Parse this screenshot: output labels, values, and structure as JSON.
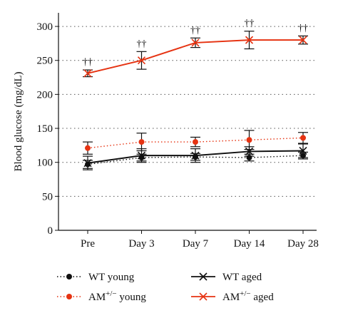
{
  "chart_data": {
    "type": "line",
    "categories": [
      "Pre",
      "Day 3",
      "Day 7",
      "Day 14",
      "Day 28"
    ],
    "ylabel": "Blood glucose (mg/dL)",
    "ylim": [
      0,
      320
    ],
    "yticks": [
      0,
      50,
      100,
      150,
      200,
      250,
      300
    ],
    "grid": "horizontal dotted",
    "legend_position": "bottom",
    "series": [
      {
        "name": "WT young",
        "color": "#111111",
        "line_style": "dotted",
        "marker": "circle",
        "values": [
          97,
          107,
          108,
          107,
          110
        ],
        "error": [
          6,
          5,
          5,
          5,
          5
        ]
      },
      {
        "name": "WT aged",
        "color": "#111111",
        "line_style": "solid",
        "marker": "x",
        "values": [
          99,
          110,
          110,
          116,
          117
        ],
        "error": [
          10,
          10,
          10,
          7,
          10
        ]
      },
      {
        "name": "AM+/− young",
        "color": "#e63312",
        "line_style": "dotted",
        "marker": "circle",
        "values": [
          121,
          130,
          130,
          133,
          136
        ],
        "error": [
          9,
          13,
          7,
          14,
          8
        ]
      },
      {
        "name": "AM+/− aged",
        "color": "#e63312",
        "line_style": "solid",
        "marker": "x",
        "values": [
          231,
          250,
          276,
          280,
          280
        ],
        "error": [
          5,
          13,
          7,
          13,
          6
        ]
      }
    ],
    "annotations": [
      {
        "category": "Pre",
        "text": "††"
      },
      {
        "category": "Day 3",
        "text": "††"
      },
      {
        "category": "Day 7",
        "text": "††"
      },
      {
        "category": "Day 14",
        "text": "††"
      },
      {
        "category": "Day 28",
        "text": "††"
      }
    ],
    "legend": [
      {
        "base": "WT young",
        "sup": ""
      },
      {
        "base": "WT aged",
        "sup": ""
      },
      {
        "base": "AM",
        "sup": "+/−",
        "suffix": " young"
      },
      {
        "base": "AM",
        "sup": "+/−",
        "suffix": " aged"
      }
    ]
  }
}
